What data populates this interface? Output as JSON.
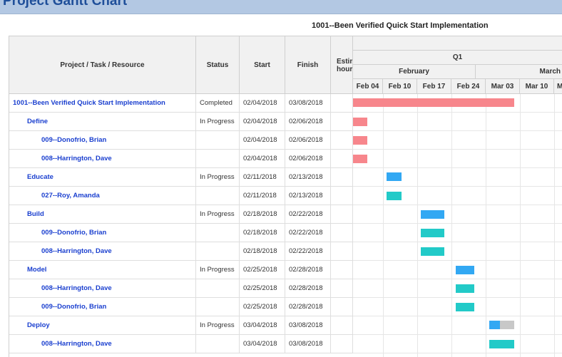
{
  "header": {
    "title": "Project Gantt Chart"
  },
  "project_title": "1001--Been Verified Quick Start Implementation",
  "columns": {
    "task": "Project / Task / Resource",
    "status": "Status",
    "start": "Start",
    "finish": "Finish",
    "estimate": "Estimated hours"
  },
  "timeline": {
    "quarter": "Q1",
    "months": [
      "February",
      "March"
    ],
    "weeks": [
      "Feb 04",
      "Feb 10",
      "Feb 17",
      "Feb 24",
      "Mar 03",
      "Mar 10",
      "Mar"
    ]
  },
  "rows": [
    {
      "name": "1001--Been Verified Quick Start Implementation",
      "status": "Completed",
      "start": "02/04/2018",
      "finish": "03/08/2018"
    },
    {
      "name": "Define",
      "status": "In Progress",
      "start": "02/04/2018",
      "finish": "02/06/2018"
    },
    {
      "name": "009--Donofrio, Brian",
      "status": "",
      "start": "02/04/2018",
      "finish": "02/06/2018"
    },
    {
      "name": "008--Harrington, Dave",
      "status": "",
      "start": "02/04/2018",
      "finish": "02/06/2018"
    },
    {
      "name": "Educate",
      "status": "In Progress",
      "start": "02/11/2018",
      "finish": "02/13/2018"
    },
    {
      "name": "027--Roy, Amanda",
      "status": "",
      "start": "02/11/2018",
      "finish": "02/13/2018"
    },
    {
      "name": "Build",
      "status": "In Progress",
      "start": "02/18/2018",
      "finish": "02/22/2018"
    },
    {
      "name": "009--Donofrio, Brian",
      "status": "",
      "start": "02/18/2018",
      "finish": "02/22/2018"
    },
    {
      "name": "008--Harrington, Dave",
      "status": "",
      "start": "02/18/2018",
      "finish": "02/22/2018"
    },
    {
      "name": "Model",
      "status": "In Progress",
      "start": "02/25/2018",
      "finish": "02/28/2018"
    },
    {
      "name": "008--Harrington, Dave",
      "status": "",
      "start": "02/25/2018",
      "finish": "02/28/2018"
    },
    {
      "name": "009--Donofrio, Brian",
      "status": "",
      "start": "02/25/2018",
      "finish": "02/28/2018"
    },
    {
      "name": "Deploy",
      "status": "In Progress",
      "start": "03/04/2018",
      "finish": "03/08/2018"
    },
    {
      "name": "008--Harrington, Dave",
      "status": "",
      "start": "03/04/2018",
      "finish": "03/08/2018"
    }
  ],
  "bar_colors": {
    "project": "#f7868c",
    "summary": "#32a8f3",
    "resource": "#22cac8",
    "remaining": "#c8c8c8"
  }
}
